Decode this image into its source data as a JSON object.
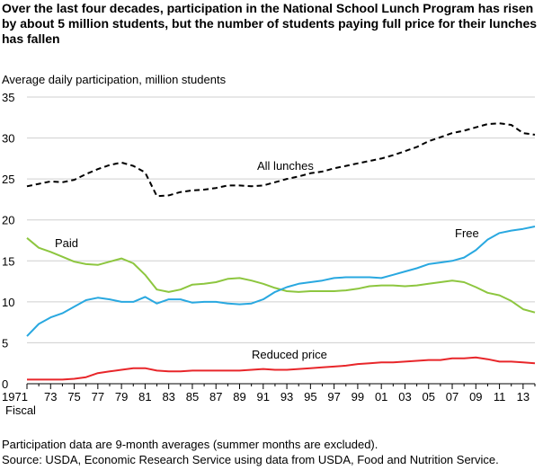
{
  "chart_data": {
    "type": "line",
    "title": "Over the last four decades, participation in the National School Lunch Program has risen by about 5 million students, but the number of students paying full price for their lunches has fallen",
    "title_lines": [
      "Over the last four decades, participation in the National School Lunch Program has risen",
      "by about 5 million students, but the number of students paying full price for their lunches",
      "has fallen"
    ],
    "ylabel": "Average daily participation, million students",
    "xlabel": "Fiscal",
    "ylim": [
      0,
      35
    ],
    "xlim": [
      1971,
      2014
    ],
    "y_ticks": [
      {
        "value": 0,
        "label": "0"
      },
      {
        "value": 5,
        "label": "5"
      },
      {
        "value": 10,
        "label": "10"
      },
      {
        "value": 15,
        "label": "15"
      },
      {
        "value": 20,
        "label": "20"
      },
      {
        "value": 25,
        "label": "25"
      },
      {
        "value": 30,
        "label": "30"
      },
      {
        "value": 35,
        "label": "35"
      }
    ],
    "x_ticks": [
      {
        "value": 1971,
        "label": "1971"
      },
      {
        "value": 1973,
        "label": "73"
      },
      {
        "value": 1975,
        "label": "75"
      },
      {
        "value": 1977,
        "label": "77"
      },
      {
        "value": 1979,
        "label": "79"
      },
      {
        "value": 1981,
        "label": "81"
      },
      {
        "value": 1983,
        "label": "83"
      },
      {
        "value": 1985,
        "label": "85"
      },
      {
        "value": 1987,
        "label": "87"
      },
      {
        "value": 1989,
        "label": "89"
      },
      {
        "value": 1991,
        "label": "91"
      },
      {
        "value": 1993,
        "label": "93"
      },
      {
        "value": 1995,
        "label": "95"
      },
      {
        "value": 1997,
        "label": "97"
      },
      {
        "value": 1999,
        "label": "99"
      },
      {
        "value": 2001,
        "label": "01"
      },
      {
        "value": 2003,
        "label": "03"
      },
      {
        "value": 2005,
        "label": "05"
      },
      {
        "value": 2007,
        "label": "07"
      },
      {
        "value": 2009,
        "label": "09"
      },
      {
        "value": 2011,
        "label": "11"
      },
      {
        "value": 2013,
        "label": "13"
      }
    ],
    "grid": true,
    "x": [
      1971,
      1972,
      1973,
      1974,
      1975,
      1976,
      1977,
      1978,
      1979,
      1980,
      1981,
      1982,
      1983,
      1984,
      1985,
      1986,
      1987,
      1988,
      1989,
      1990,
      1991,
      1992,
      1993,
      1994,
      1995,
      1996,
      1997,
      1998,
      1999,
      2000,
      2001,
      2002,
      2003,
      2004,
      2005,
      2006,
      2007,
      2008,
      2009,
      2010,
      2011,
      2012,
      2013,
      2014
    ],
    "series": [
      {
        "name": "All lunches",
        "color": "#000000",
        "dashed": true,
        "values": [
          24.1,
          24.4,
          24.7,
          24.6,
          24.9,
          25.6,
          26.2,
          26.7,
          27.0,
          26.6,
          25.8,
          22.9,
          23.0,
          23.4,
          23.6,
          23.7,
          23.9,
          24.2,
          24.2,
          24.1,
          24.2,
          24.6,
          25.0,
          25.3,
          25.7,
          25.9,
          26.3,
          26.6,
          26.9,
          27.2,
          27.5,
          27.9,
          28.4,
          28.9,
          29.6,
          30.1,
          30.6,
          30.9,
          31.3,
          31.7,
          31.8,
          31.6,
          30.6,
          30.4
        ]
      },
      {
        "name": "Paid",
        "color": "#8dc63f",
        "dashed": false,
        "values": [
          17.8,
          16.6,
          16.1,
          15.5,
          14.9,
          14.6,
          14.5,
          14.9,
          15.3,
          14.7,
          13.3,
          11.5,
          11.2,
          11.5,
          12.1,
          12.2,
          12.4,
          12.8,
          12.9,
          12.6,
          12.2,
          11.7,
          11.3,
          11.2,
          11.3,
          11.3,
          11.3,
          11.4,
          11.6,
          11.9,
          12.0,
          12.0,
          11.9,
          12.0,
          12.2,
          12.4,
          12.6,
          12.4,
          11.8,
          11.1,
          10.8,
          10.1,
          9.1,
          8.7
        ]
      },
      {
        "name": "Free",
        "color": "#29a8e0",
        "dashed": false,
        "values": [
          5.8,
          7.3,
          8.1,
          8.6,
          9.4,
          10.2,
          10.5,
          10.3,
          10.0,
          10.0,
          10.6,
          9.8,
          10.3,
          10.3,
          9.9,
          10.0,
          10.0,
          9.8,
          9.7,
          9.8,
          10.3,
          11.2,
          11.8,
          12.2,
          12.4,
          12.6,
          12.9,
          13.0,
          13.0,
          13.0,
          12.9,
          13.3,
          13.7,
          14.1,
          14.6,
          14.8,
          15.0,
          15.4,
          16.3,
          17.6,
          18.4,
          18.7,
          18.9,
          19.2
        ]
      },
      {
        "name": "Reduced price",
        "color": "#e8262a",
        "dashed": false,
        "values": [
          0.5,
          0.5,
          0.5,
          0.5,
          0.6,
          0.8,
          1.3,
          1.5,
          1.7,
          1.9,
          1.9,
          1.6,
          1.5,
          1.5,
          1.6,
          1.6,
          1.6,
          1.6,
          1.6,
          1.7,
          1.8,
          1.7,
          1.7,
          1.8,
          1.9,
          2.0,
          2.1,
          2.2,
          2.4,
          2.5,
          2.6,
          2.6,
          2.7,
          2.8,
          2.9,
          2.9,
          3.1,
          3.1,
          3.2,
          3.0,
          2.7,
          2.7,
          2.6,
          2.5
        ]
      }
    ],
    "annotations": [
      {
        "text": "All lunches",
        "series": "All lunches"
      },
      {
        "text": "Paid",
        "series": "Paid"
      },
      {
        "text": "Free",
        "series": "Free"
      },
      {
        "text": "Reduced price",
        "series": "Reduced price"
      }
    ],
    "notes": [
      "Participation data are 9-month averages (summer months are excluded).",
      "Source: USDA, Economic Research Service using data from USDA, Food and Nutrition Service."
    ]
  }
}
